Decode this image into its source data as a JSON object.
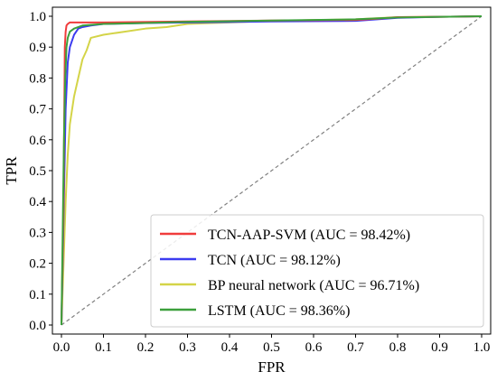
{
  "chart_data": {
    "type": "line",
    "title": "",
    "xlabel": "FPR",
    "ylabel": "TPR",
    "xlim": [
      0.0,
      1.0
    ],
    "ylim": [
      0.0,
      1.0
    ],
    "xticks": [
      "0.0",
      "0.1",
      "0.2",
      "0.3",
      "0.4",
      "0.5",
      "0.6",
      "0.7",
      "0.8",
      "0.9",
      "1.0"
    ],
    "yticks": [
      "0.0",
      "0.1",
      "0.2",
      "0.3",
      "0.4",
      "0.5",
      "0.6",
      "0.7",
      "0.8",
      "0.9",
      "1.0"
    ],
    "grid": false,
    "legend_position": "lower-right",
    "series": [
      {
        "name": "TCN-AAP-SVM (AUC = 98.42%)",
        "color": "#f03c3c",
        "x": [
          0.0,
          0.005,
          0.008,
          0.01,
          0.012,
          0.015,
          0.02,
          0.05,
          0.1,
          0.3,
          0.5,
          0.7,
          0.75,
          0.8,
          0.9,
          1.0
        ],
        "y": [
          0.0,
          0.4,
          0.9,
          0.95,
          0.97,
          0.975,
          0.98,
          0.98,
          0.98,
          0.983,
          0.986,
          0.988,
          0.992,
          0.997,
          0.998,
          1.0
        ]
      },
      {
        "name": "TCN (AUC = 98.12%)",
        "color": "#3c3cf0",
        "x": [
          0.0,
          0.005,
          0.01,
          0.015,
          0.02,
          0.03,
          0.04,
          0.05,
          0.07,
          0.1,
          0.2,
          0.3,
          0.5,
          0.7,
          0.8,
          0.9,
          1.0
        ],
        "y": [
          0.0,
          0.35,
          0.7,
          0.85,
          0.9,
          0.94,
          0.96,
          0.965,
          0.97,
          0.975,
          0.978,
          0.98,
          0.983,
          0.985,
          0.995,
          0.998,
          1.0
        ]
      },
      {
        "name": "BP neural network (AUC = 96.71%)",
        "color": "#d4d448",
        "x": [
          0.0,
          0.005,
          0.01,
          0.015,
          0.02,
          0.03,
          0.04,
          0.05,
          0.06,
          0.065,
          0.07,
          0.1,
          0.15,
          0.2,
          0.25,
          0.3,
          0.4,
          0.5,
          0.7,
          0.8,
          0.9,
          1.0
        ],
        "y": [
          0.0,
          0.2,
          0.4,
          0.55,
          0.65,
          0.74,
          0.8,
          0.86,
          0.89,
          0.91,
          0.93,
          0.94,
          0.95,
          0.96,
          0.965,
          0.975,
          0.98,
          0.985,
          0.99,
          0.997,
          0.998,
          1.0
        ]
      },
      {
        "name": "LSTM (AUC = 98.36%)",
        "color": "#3ca03c",
        "x": [
          0.0,
          0.003,
          0.006,
          0.009,
          0.012,
          0.015,
          0.02,
          0.03,
          0.05,
          0.1,
          0.2,
          0.3,
          0.5,
          0.7,
          0.8,
          0.9,
          1.0
        ],
        "y": [
          0.0,
          0.3,
          0.6,
          0.8,
          0.9,
          0.93,
          0.95,
          0.96,
          0.97,
          0.975,
          0.978,
          0.982,
          0.986,
          0.99,
          0.996,
          0.998,
          1.0
        ]
      }
    ],
    "reference_line": {
      "style": "dashed",
      "color": "#808080",
      "x": [
        0.0,
        1.0
      ],
      "y": [
        0.0,
        1.0
      ]
    }
  }
}
